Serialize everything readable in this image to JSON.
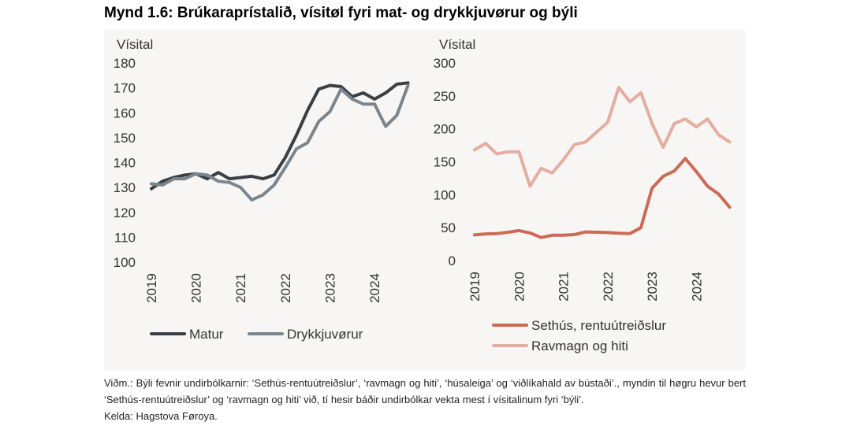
{
  "title": "Mynd 1.6: Brúkaraprístalið, vísitøl fyri mat- og drykkjuvørur og býli",
  "charts": [
    {
      "type": "line",
      "ylabel": "Vísital",
      "ylim": [
        100,
        180
      ],
      "yticks": [
        100,
        110,
        120,
        130,
        140,
        150,
        160,
        170,
        180
      ],
      "xlim": [
        2019,
        2024.917
      ],
      "xticks": [
        "2019",
        "2020",
        "2021",
        "2022",
        "2023",
        "2024"
      ],
      "series": [
        {
          "name": "Matur",
          "color": "#3a3f44",
          "x": [
            2019,
            2019.25,
            2019.5,
            2019.75,
            2020,
            2020.25,
            2020.5,
            2020.75,
            2021,
            2021.25,
            2021.5,
            2021.75,
            2022,
            2022.25,
            2022.5,
            2022.75,
            2023,
            2023.25,
            2023.5,
            2023.75,
            2024,
            2024.25,
            2024.5,
            2024.75
          ],
          "values": [
            129.5,
            132.5,
            134,
            135,
            135.5,
            133.5,
            136,
            133.5,
            134,
            134.5,
            133.5,
            135,
            142,
            151,
            161,
            169.5,
            171,
            170.5,
            166.5,
            168,
            165.5,
            168,
            171.5,
            172
          ]
        },
        {
          "name": "Drykkjuvørur",
          "color": "#7a858e",
          "x": [
            2019,
            2019.25,
            2019.5,
            2019.75,
            2020,
            2020.25,
            2020.5,
            2020.75,
            2021,
            2021.25,
            2021.5,
            2021.75,
            2022,
            2022.25,
            2022.5,
            2022.75,
            2023,
            2023.25,
            2023.5,
            2023.75,
            2024,
            2024.25,
            2024.5,
            2024.75
          ],
          "values": [
            131.5,
            131,
            133.5,
            133.5,
            135.5,
            135,
            132.5,
            132,
            130,
            125,
            127,
            131,
            138,
            145.5,
            148,
            156.5,
            160.5,
            169.5,
            165.5,
            163.5,
            163.5,
            154.5,
            159,
            171
          ]
        }
      ],
      "legend": "bottom"
    },
    {
      "type": "line",
      "ylabel": "Vísital",
      "ylim": [
        0,
        300
      ],
      "yticks": [
        0,
        50,
        100,
        150,
        200,
        250,
        300
      ],
      "xlim": [
        2019,
        2024.917
      ],
      "xticks": [
        "2019",
        "2020",
        "2021",
        "2022",
        "2023",
        "2024"
      ],
      "series": [
        {
          "name": "Sethús, rentuútreiðslur",
          "color": "#cc6a55",
          "x": [
            2019,
            2019.25,
            2019.5,
            2019.75,
            2020,
            2020.25,
            2020.5,
            2020.75,
            2021,
            2021.25,
            2021.5,
            2021.75,
            2022,
            2022.25,
            2022.5,
            2022.75,
            2023,
            2023.25,
            2023.5,
            2023.75,
            2024,
            2024.25,
            2024.5,
            2024.75
          ],
          "values": [
            39,
            40.5,
            41,
            43,
            45.5,
            42,
            35,
            38.5,
            38.5,
            39.5,
            43.5,
            43,
            42.5,
            41.5,
            41,
            50,
            110,
            128,
            136,
            155,
            135,
            113,
            101,
            81
          ]
        },
        {
          "name": "Ravmagn og hiti",
          "color": "#e4ada2",
          "x": [
            2019,
            2019.25,
            2019.5,
            2019.75,
            2020,
            2020.25,
            2020.5,
            2020.75,
            2021,
            2021.25,
            2021.5,
            2021.75,
            2022,
            2022.25,
            2022.5,
            2022.75,
            2023,
            2023.25,
            2023.5,
            2023.75,
            2024,
            2024.25,
            2024.5,
            2024.75
          ],
          "values": [
            168,
            178,
            162,
            165,
            165,
            113,
            140,
            133,
            153,
            176,
            180,
            195,
            210,
            263,
            241,
            255,
            208,
            172,
            208,
            215,
            203,
            215,
            191,
            180
          ]
        }
      ],
      "legend": "bottom"
    }
  ],
  "note": {
    "line1": "Viðm.: Býli fevnir undirbólkarnir: ‘Sethús-rentuútreiðslur’, ‘ravmagn og hiti’, ‘húsaleiga’ og ‘viðlíkahald av bústaði’., myndin til høgru hevur bert ‘Sethús-rentuútreiðslur’ og ‘ravmagn og hiti’ við, tí hesir báðir undirbólkar vekta mest í vísitalinum fyri ‘býli’.",
    "line2": "Kelda: Hagstova Føroya."
  }
}
